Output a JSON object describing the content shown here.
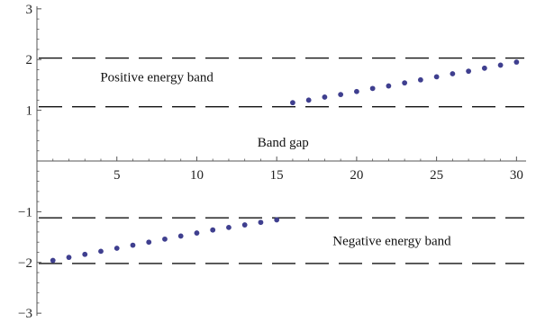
{
  "chart_data": {
    "type": "scatter",
    "title": "",
    "xlabel": "",
    "ylabel": "",
    "xlim": [
      0,
      30.6
    ],
    "ylim": [
      -3.05,
      3.05
    ],
    "x_ticks": [
      5,
      10,
      15,
      20,
      25,
      30
    ],
    "y_ticks": [
      -3,
      -2,
      -1,
      1,
      2,
      3
    ],
    "x_tick_labels": [
      "5",
      "10",
      "15",
      "20",
      "25",
      "30"
    ],
    "y_tick_labels": [
      "−3",
      "−2",
      "−1",
      "1",
      "2",
      "3"
    ],
    "point_color": "#3f3f8f",
    "dash_color": "#111111",
    "band_lines": [
      1.07,
      2.03,
      -1.12,
      -2.02
    ],
    "series": [
      {
        "x": [
          1,
          2,
          3,
          4,
          5,
          6,
          7,
          8,
          9,
          10,
          11,
          12,
          13,
          14,
          15,
          16,
          17,
          18,
          19,
          20,
          21,
          22,
          23,
          24,
          25,
          26,
          27,
          28,
          29,
          30
        ],
        "values": [
          -1.96,
          -1.9,
          -1.84,
          -1.78,
          -1.72,
          -1.66,
          -1.6,
          -1.54,
          -1.48,
          -1.42,
          -1.36,
          -1.31,
          -1.26,
          -1.21,
          -1.16,
          1.15,
          1.2,
          1.26,
          1.31,
          1.37,
          1.43,
          1.48,
          1.54,
          1.6,
          1.66,
          1.72,
          1.77,
          1.83,
          1.89,
          1.95
        ]
      }
    ],
    "annotations": [
      {
        "text": "Positive energy band",
        "x": 7.5,
        "y": 1.57
      },
      {
        "text": "Band gap",
        "x": 15.4,
        "y": 0.28
      },
      {
        "text": "Negative energy band",
        "x": 22.2,
        "y": -1.66
      }
    ]
  }
}
